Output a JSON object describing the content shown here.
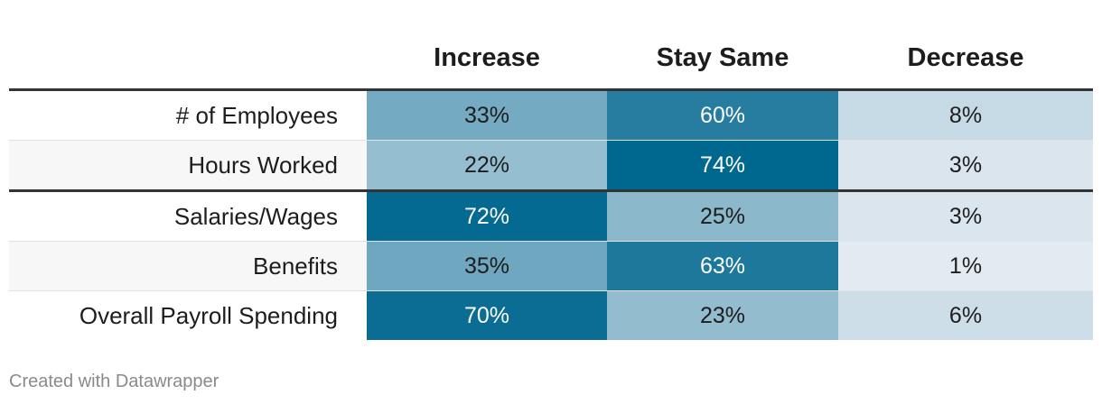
{
  "chart_data": {
    "type": "table",
    "columns": [
      "Increase",
      "Stay Same",
      "Decrease"
    ],
    "rows": [
      {
        "label": "# of Employees",
        "values": [
          "33%",
          "60%",
          "8%"
        ],
        "numbers": [
          33,
          60,
          8
        ]
      },
      {
        "label": "Hours Worked",
        "values": [
          "22%",
          "74%",
          "3%"
        ],
        "numbers": [
          22,
          74,
          3
        ]
      },
      {
        "label": "Salaries/Wages",
        "values": [
          "72%",
          "25%",
          "3%"
        ],
        "numbers": [
          72,
          25,
          3
        ]
      },
      {
        "label": "Benefits",
        "values": [
          "35%",
          "63%",
          "1%"
        ],
        "numbers": [
          35,
          63,
          1
        ]
      },
      {
        "label": "Overall Payroll Spending",
        "values": [
          "70%",
          "23%",
          "6%"
        ],
        "numbers": [
          70,
          23,
          6
        ]
      }
    ],
    "group_break_after_row": 2,
    "colors": {
      "scale_low": "#e9eef5",
      "scale_high": "#00678f",
      "text_dark": "#1d1d1d",
      "text_light": "#ffffff"
    }
  },
  "footer": {
    "credit": "Created with Datawrapper"
  }
}
